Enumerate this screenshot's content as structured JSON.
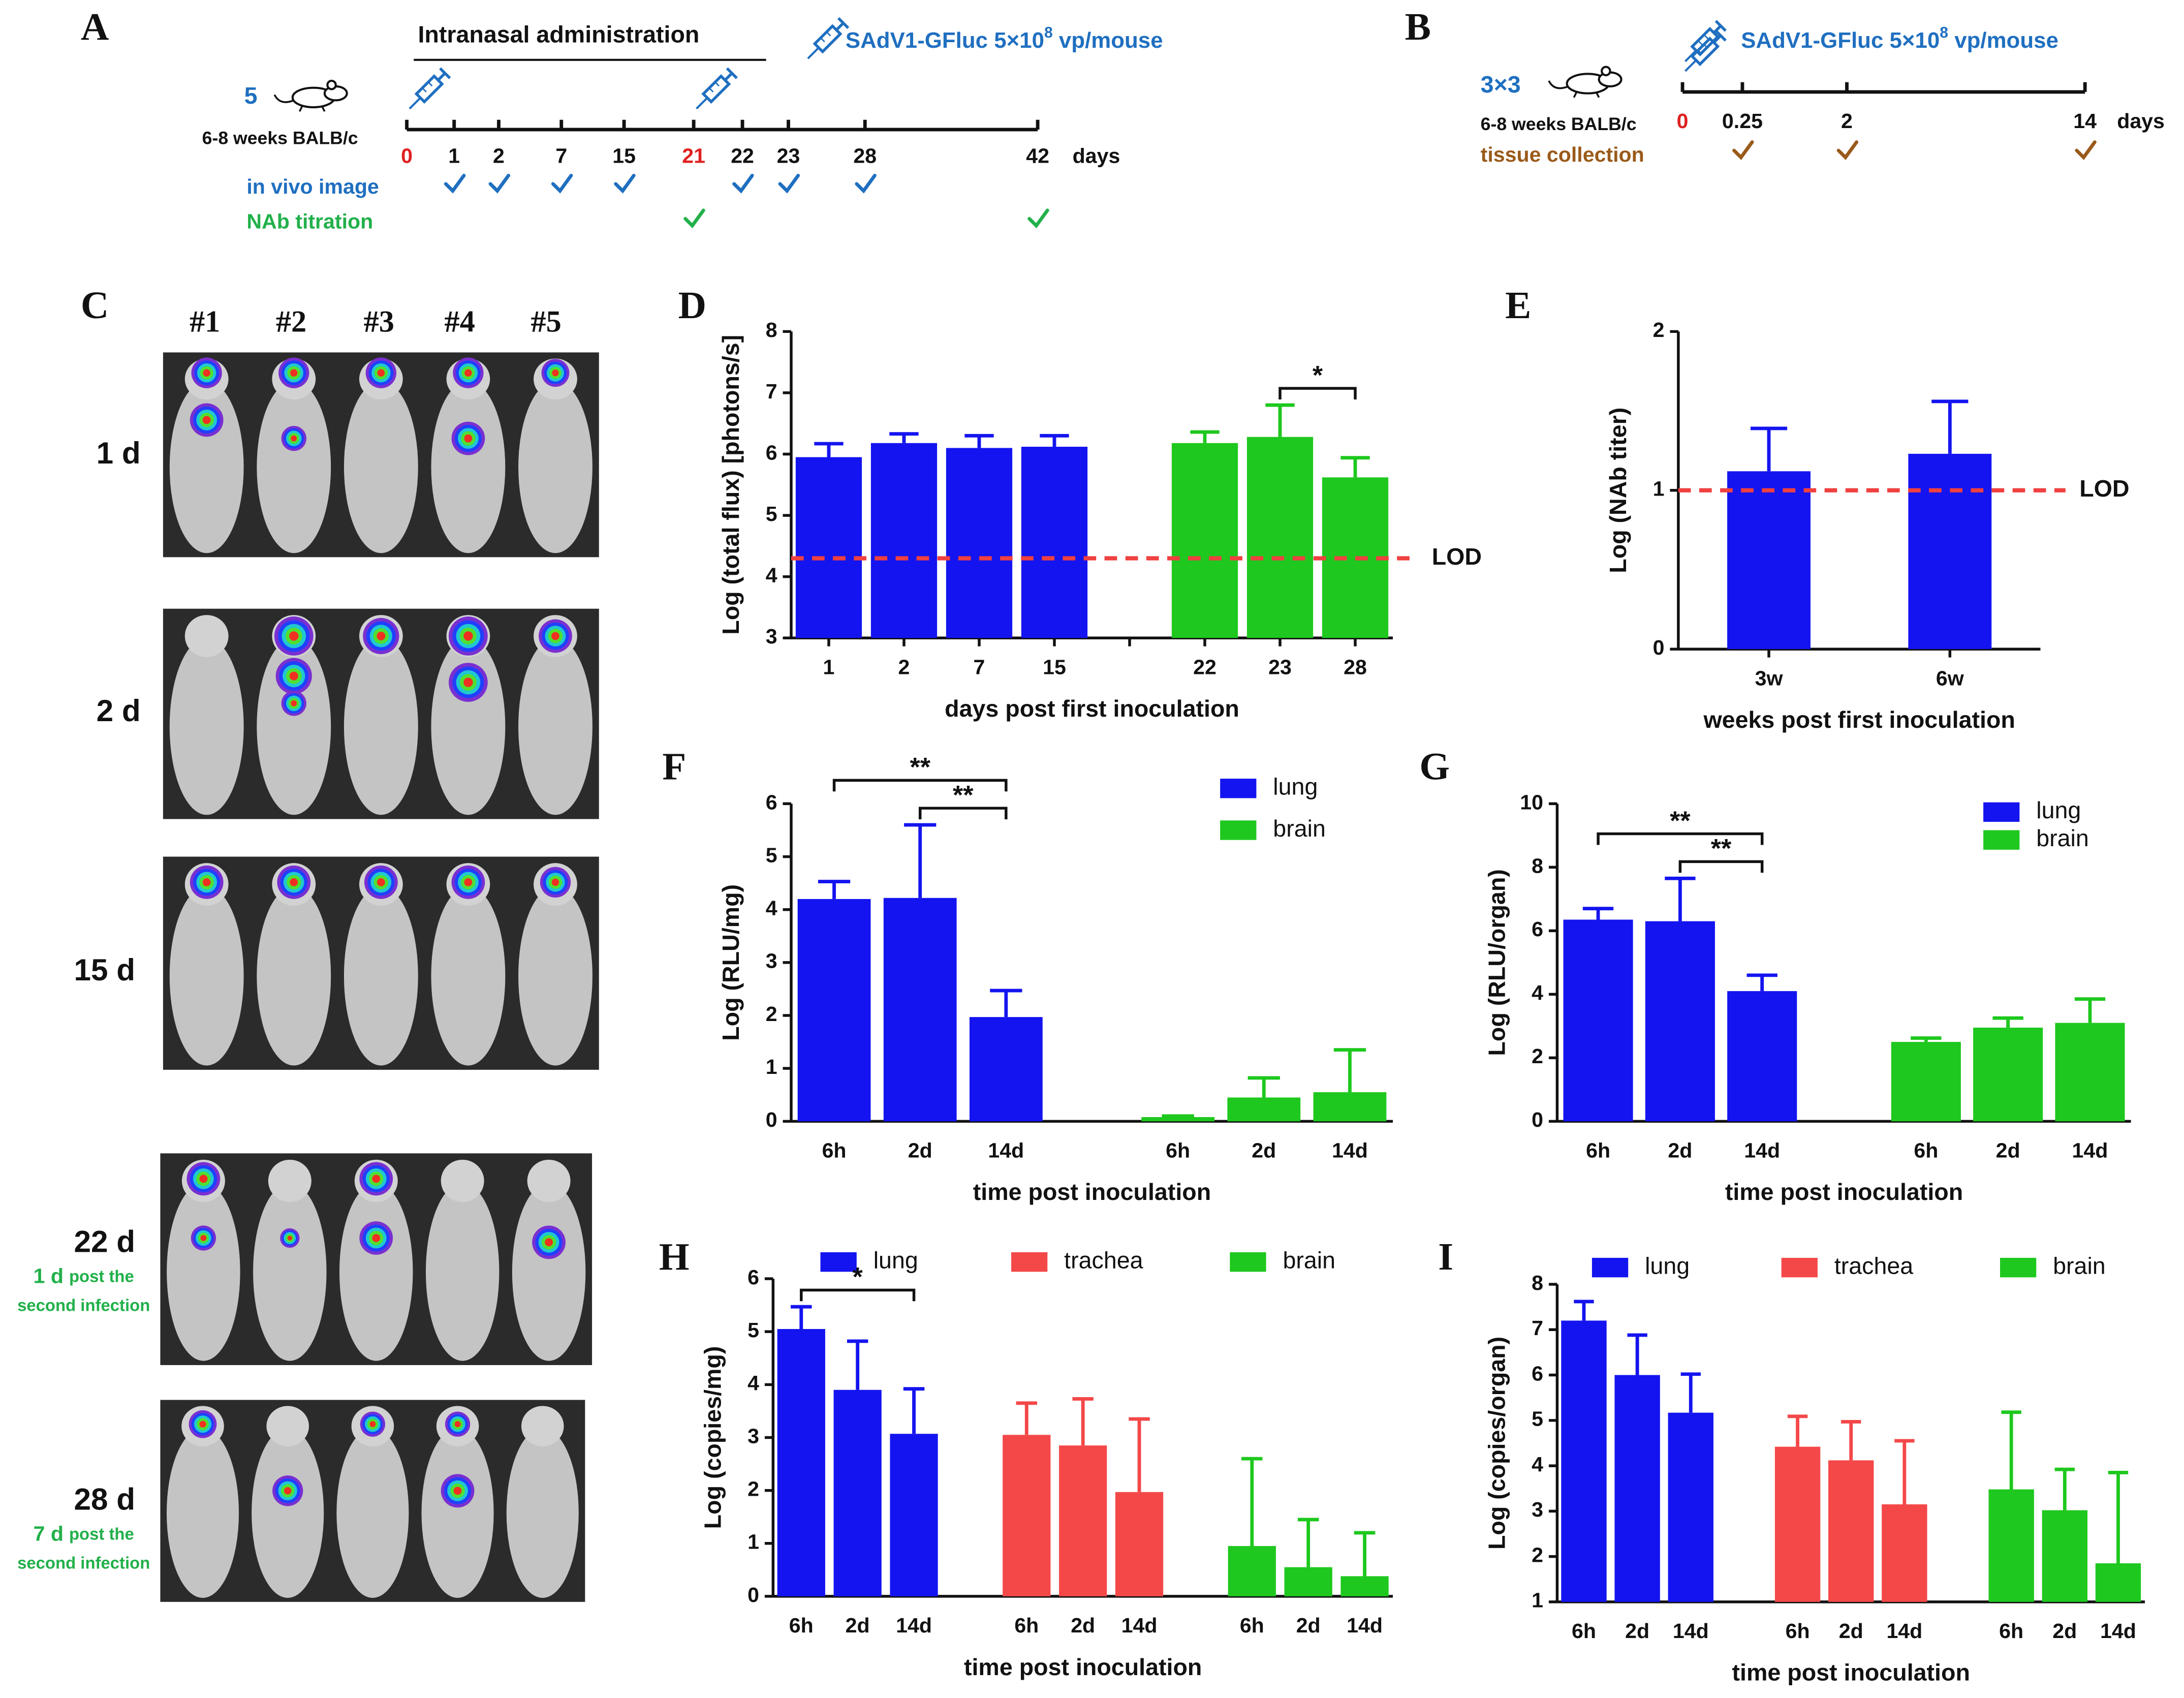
{
  "timeline_a": {
    "panel": "A",
    "heading": "Intranasal administration",
    "vector": {
      "text": "SAdV1-GFluc 5×10",
      "sup": "8",
      "unit": " vp/mouse"
    },
    "mice": "5",
    "strain": "6-8 weeks BALB/c",
    "ticks": [
      {
        "label": "0",
        "injection": true
      },
      {
        "label": "1"
      },
      {
        "label": "2"
      },
      {
        "label": "7"
      },
      {
        "label": "15"
      },
      {
        "label": "21",
        "injection": true
      },
      {
        "label": "22"
      },
      {
        "label": "23"
      },
      {
        "label": "28"
      },
      {
        "label": "42"
      }
    ],
    "unit": "days",
    "rows": [
      {
        "label": "in vivo image",
        "color": "#1f6fc0",
        "checks": [
          false,
          true,
          true,
          true,
          true,
          false,
          true,
          true,
          true,
          false
        ]
      },
      {
        "label": "NAb titration",
        "color": "#22b04a",
        "checks": [
          false,
          false,
          false,
          false,
          false,
          true,
          false,
          false,
          false,
          true
        ]
      }
    ]
  },
  "timeline_b": {
    "panel": "B",
    "vector": {
      "text": "SAdV1-GFluc 5×10",
      "sup": "8",
      "unit": " vp/mouse"
    },
    "mice": "3×3",
    "strain": "6-8 weeks BALB/c",
    "ticks": [
      {
        "label": "0",
        "injection": true
      },
      {
        "label": "0.25"
      },
      {
        "label": "2"
      },
      {
        "label": "14"
      }
    ],
    "unit": "days",
    "rows": [
      {
        "label": "tissue collection",
        "color": "#9a5a1a",
        "checks": [
          false,
          true,
          true,
          true
        ]
      }
    ]
  },
  "imaging": {
    "panel": "C",
    "mice": [
      "#1",
      "#2",
      "#3",
      "#4",
      "#5"
    ],
    "rows": [
      {
        "label": "1 d"
      },
      {
        "label": "2 d"
      },
      {
        "label": "15 d"
      },
      {
        "label": "22 d",
        "note": [
          "1 d",
          "post the",
          "second infection"
        ]
      },
      {
        "label": "28 d",
        "note": [
          "7 d",
          "post the",
          "second infection"
        ]
      }
    ]
  },
  "chart_data": [
    {
      "panel": "D",
      "type": "bar",
      "ylabel": "Log (total flux) [photons/s]",
      "xlabel": "days post first inoculation",
      "categories": [
        "1",
        "2",
        "7",
        "15",
        null,
        "22",
        "23",
        "28"
      ],
      "values": [
        5.95,
        6.18,
        6.1,
        6.12,
        null,
        6.18,
        6.28,
        5.62
      ],
      "errors": [
        0.22,
        0.15,
        0.2,
        0.18,
        null,
        0.18,
        0.52,
        0.32
      ],
      "colors": [
        "#1414f0",
        "#1414f0",
        "#1414f0",
        "#1414f0",
        null,
        "#1ec81e",
        "#1ec81e",
        "#1ec81e"
      ],
      "ylim": [
        3,
        8
      ],
      "yticks": [
        3,
        4,
        5,
        6,
        7,
        8
      ],
      "reference_line": {
        "value": 4.3,
        "label": "LOD",
        "color": "#f04040"
      },
      "significance": [
        {
          "between": [
            6,
            7
          ],
          "label": "*"
        }
      ]
    },
    {
      "panel": "E",
      "type": "bar",
      "ylabel": "Log (NAb titer)",
      "xlabel": "weeks post first inoculation",
      "categories": [
        "3w",
        "6w"
      ],
      "values": [
        1.12,
        1.23
      ],
      "errors": [
        0.27,
        0.33
      ],
      "colors": [
        "#1414f0",
        "#1414f0"
      ],
      "ylim": [
        0,
        2
      ],
      "yticks": [
        0,
        1,
        2
      ],
      "reference_line": {
        "value": 1,
        "label": "LOD",
        "color": "#f04040"
      }
    },
    {
      "panel": "F",
      "type": "grouped_bar",
      "ylabel": "Log (RLU/mg)",
      "xlabel": "time post inoculation",
      "categories": [
        "6h",
        "2d",
        "14d"
      ],
      "series": [
        {
          "name": "lung",
          "color": "#1414f0",
          "values": [
            4.2,
            4.22,
            1.97
          ],
          "errors": [
            0.33,
            1.38,
            0.5
          ]
        },
        {
          "name": "brain",
          "color": "#1ec81e",
          "values": [
            0.08,
            0.45,
            0.55
          ],
          "errors": [
            0.02,
            0.37,
            0.8
          ]
        }
      ],
      "ylim": [
        0,
        6
      ],
      "yticks": [
        0,
        1,
        2,
        3,
        4,
        5,
        6
      ],
      "legend": "upper right",
      "significance": [
        {
          "series": 0,
          "between": [
            0,
            2
          ],
          "label": "**"
        },
        {
          "series": 0,
          "between": [
            1,
            2
          ],
          "label": "**"
        }
      ]
    },
    {
      "panel": "G",
      "type": "grouped_bar",
      "ylabel": "Log (RLU/organ)",
      "xlabel": "time post inoculation",
      "categories": [
        "6h",
        "2d",
        "14d"
      ],
      "series": [
        {
          "name": "lung",
          "color": "#1414f0",
          "values": [
            6.35,
            6.3,
            4.1
          ],
          "errors": [
            0.35,
            1.35,
            0.5
          ]
        },
        {
          "name": "brain",
          "color": "#1ec81e",
          "values": [
            2.5,
            2.95,
            3.1
          ],
          "errors": [
            0.12,
            0.3,
            0.75
          ]
        }
      ],
      "ylim": [
        0,
        10
      ],
      "yticks": [
        0,
        2,
        4,
        6,
        8,
        10
      ],
      "legend": "upper right",
      "significance": [
        {
          "series": 0,
          "between": [
            0,
            2
          ],
          "label": "**"
        },
        {
          "series": 0,
          "between": [
            1,
            2
          ],
          "label": "**"
        }
      ]
    },
    {
      "panel": "H",
      "type": "grouped_bar",
      "ylabel": "Log (copies/mg)",
      "xlabel": "time post inoculation",
      "categories": [
        "6h",
        "2d",
        "14d"
      ],
      "series": [
        {
          "name": "lung",
          "color": "#1414f0",
          "values": [
            5.05,
            3.9,
            3.07
          ],
          "errors": [
            0.42,
            0.92,
            0.85
          ]
        },
        {
          "name": "trachea",
          "color": "#f44848",
          "values": [
            3.05,
            2.85,
            1.97
          ],
          "errors": [
            0.6,
            0.88,
            1.38
          ]
        },
        {
          "name": "brain",
          "color": "#1ec81e",
          "values": [
            0.95,
            0.55,
            0.38
          ],
          "errors": [
            1.65,
            0.9,
            0.82
          ]
        }
      ],
      "ylim": [
        0,
        6
      ],
      "yticks": [
        0,
        1,
        2,
        3,
        4,
        5,
        6
      ],
      "legend": "top",
      "significance": [
        {
          "series": 0,
          "between": [
            0,
            2
          ],
          "label": "*"
        }
      ]
    },
    {
      "panel": "I",
      "type": "grouped_bar",
      "ylabel": "Log (copies/organ)",
      "xlabel": "time post inoculation",
      "categories": [
        "6h",
        "2d",
        "14d"
      ],
      "series": [
        {
          "name": "lung",
          "color": "#1414f0",
          "values": [
            7.2,
            6.0,
            5.17
          ],
          "errors": [
            0.42,
            0.88,
            0.85
          ]
        },
        {
          "name": "trachea",
          "color": "#f44848",
          "values": [
            4.42,
            4.12,
            3.15
          ],
          "errors": [
            0.67,
            0.85,
            1.4
          ]
        },
        {
          "name": "brain",
          "color": "#1ec81e",
          "values": [
            3.48,
            3.02,
            1.85
          ],
          "errors": [
            1.7,
            0.9,
            2.0
          ]
        }
      ],
      "ylim": [
        1,
        8
      ],
      "yticks": [
        1,
        2,
        3,
        4,
        5,
        6,
        7,
        8
      ],
      "legend": "top"
    }
  ]
}
